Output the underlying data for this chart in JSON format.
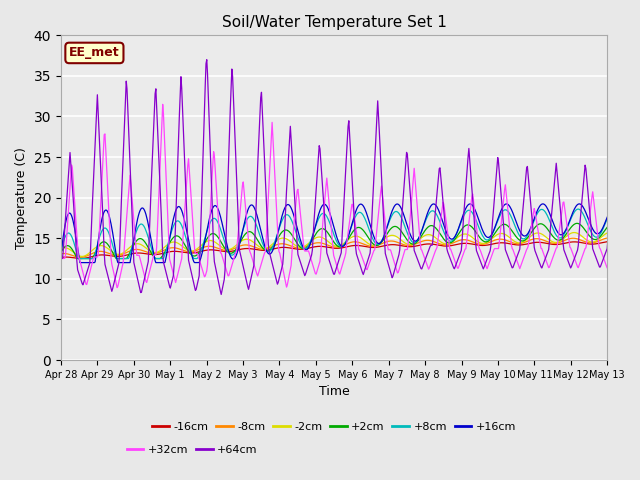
{
  "title": "Soil/Water Temperature Set 1",
  "xlabel": "Time",
  "ylabel": "Temperature (C)",
  "ylim": [
    0,
    40
  ],
  "yticks": [
    0,
    5,
    10,
    15,
    20,
    25,
    30,
    35,
    40
  ],
  "fig_facecolor": "#e8e8e8",
  "ax_facecolor": "#ebebeb",
  "grid_color": "#ffffff",
  "annotation_text": "EE_met",
  "annotation_bg": "#ffffcc",
  "annotation_border": "#800000",
  "annotation_text_color": "#800000",
  "series_colors": {
    "-16cm": "#cc0000",
    "-8cm": "#ff8800",
    "-2cm": "#dddd00",
    "+2cm": "#00aa00",
    "+8cm": "#00bbbb",
    "+16cm": "#0000cc",
    "+32cm": "#ff44ff",
    "+64cm": "#8800cc"
  },
  "legend_order": [
    "-16cm",
    "-8cm",
    "-2cm",
    "+2cm",
    "+8cm",
    "+16cm",
    "+32cm",
    "+64cm"
  ],
  "xtick_labels": [
    "Apr 28",
    "Apr 29",
    "Apr 30",
    "May 1",
    "May 2",
    "May 3",
    "May 4",
    "May 5",
    "May 6",
    "May 7",
    "May 8",
    "May 9",
    "May 10",
    "May 11",
    "May 12",
    "May 13"
  ],
  "n_days": 16
}
